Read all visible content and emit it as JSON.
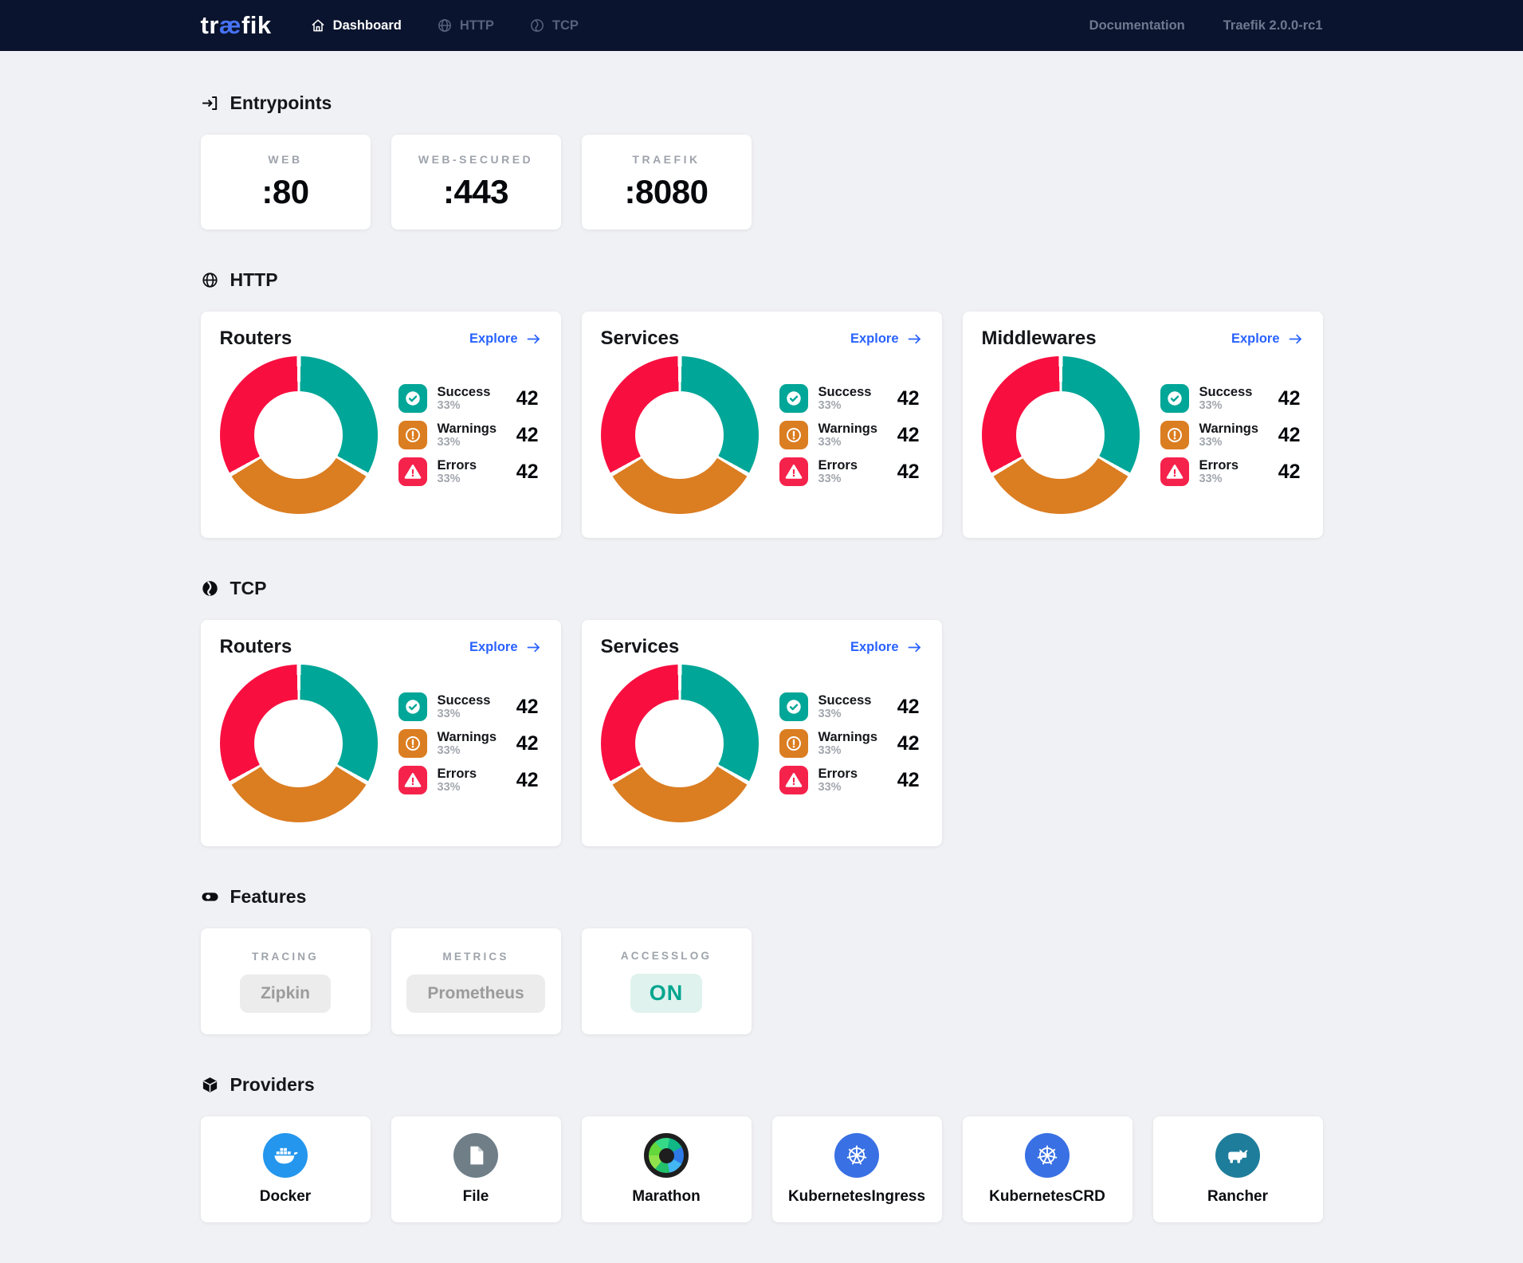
{
  "navbar": {
    "logo": {
      "pre": "tr",
      "ae": "æ",
      "post": "fik"
    },
    "items": [
      {
        "label": "Dashboard",
        "icon": "home-icon",
        "active": true
      },
      {
        "label": "HTTP",
        "icon": "globe-icon",
        "active": false
      },
      {
        "label": "TCP",
        "icon": "tcp-outline-icon",
        "active": false
      }
    ],
    "links": [
      {
        "label": "Documentation"
      },
      {
        "label": "Traefik 2.0.0-rc1"
      }
    ]
  },
  "sections": {
    "entrypoints": {
      "title": "Entrypoints",
      "icon": "login-icon",
      "cards": [
        {
          "label": "WEB",
          "value": ":80"
        },
        {
          "label": "WEB-SECURED",
          "value": ":443"
        },
        {
          "label": "TRAEFIK",
          "value": ":8080"
        }
      ]
    },
    "http": {
      "title": "HTTP",
      "icon": "globe-icon",
      "cards": [
        "Routers",
        "Services",
        "Middlewares"
      ]
    },
    "tcp": {
      "title": "TCP",
      "icon": "tcp-filled-icon",
      "cards": [
        "Routers",
        "Services"
      ]
    },
    "features": {
      "title": "Features",
      "icon": "toggle-icon",
      "cards": [
        {
          "label": "TRACING",
          "value": "Zipkin",
          "state": "muted"
        },
        {
          "label": "METRICS",
          "value": "Prometheus",
          "state": "muted"
        },
        {
          "label": "ACCESSLOG",
          "value": "ON",
          "state": "on"
        }
      ]
    },
    "providers": {
      "title": "Providers",
      "icon": "cube-icon",
      "cards": [
        {
          "label": "Docker",
          "icon": "docker-icon"
        },
        {
          "label": "File",
          "icon": "file-icon"
        },
        {
          "label": "Marathon",
          "icon": "marathon-icon"
        },
        {
          "label": "KubernetesIngress",
          "icon": "kubernetes-icon"
        },
        {
          "label": "KubernetesCRD",
          "icon": "kubernetes-icon"
        },
        {
          "label": "Rancher",
          "icon": "rancher-icon"
        }
      ]
    }
  },
  "chart_card": {
    "explore_label": "Explore",
    "legend": [
      {
        "name": "Success",
        "percent": "33%",
        "value": "42",
        "color": "#00A697",
        "donut_color": "#00A697",
        "icon": "check-circle-icon"
      },
      {
        "name": "Warnings",
        "percent": "33%",
        "value": "42",
        "color": "#DB7D21",
        "donut_color": "#DB7D21",
        "icon": "exclamation-circle-icon"
      },
      {
        "name": "Errors",
        "percent": "33%",
        "value": "42",
        "color": "#F5224B",
        "donut_color": "#F80F40",
        "icon": "triangle-alert-icon"
      }
    ]
  },
  "chart_data": [
    {
      "type": "pie",
      "section": "HTTP",
      "title": "Routers",
      "labels": [
        "Success",
        "Warnings",
        "Errors"
      ],
      "percents": [
        33,
        33,
        33
      ],
      "counts": [
        42,
        42,
        42
      ],
      "colors": [
        "#00A697",
        "#DB7D21",
        "#F80F40"
      ],
      "legend_position": "right",
      "donut_hole": 0.56
    },
    {
      "type": "pie",
      "section": "HTTP",
      "title": "Services",
      "labels": [
        "Success",
        "Warnings",
        "Errors"
      ],
      "percents": [
        33,
        33,
        33
      ],
      "counts": [
        42,
        42,
        42
      ],
      "colors": [
        "#00A697",
        "#DB7D21",
        "#F80F40"
      ],
      "legend_position": "right",
      "donut_hole": 0.56
    },
    {
      "type": "pie",
      "section": "HTTP",
      "title": "Middlewares",
      "labels": [
        "Success",
        "Warnings",
        "Errors"
      ],
      "percents": [
        33,
        33,
        33
      ],
      "counts": [
        42,
        42,
        42
      ],
      "colors": [
        "#00A697",
        "#DB7D21",
        "#F80F40"
      ],
      "legend_position": "right",
      "donut_hole": 0.56
    },
    {
      "type": "pie",
      "section": "TCP",
      "title": "Routers",
      "labels": [
        "Success",
        "Warnings",
        "Errors"
      ],
      "percents": [
        33,
        33,
        33
      ],
      "counts": [
        42,
        42,
        42
      ],
      "colors": [
        "#00A697",
        "#DB7D21",
        "#F80F40"
      ],
      "legend_position": "right",
      "donut_hole": 0.56
    },
    {
      "type": "pie",
      "section": "TCP",
      "title": "Services",
      "labels": [
        "Success",
        "Warnings",
        "Errors"
      ],
      "percents": [
        33,
        33,
        33
      ],
      "counts": [
        42,
        42,
        42
      ],
      "colors": [
        "#00A697",
        "#DB7D21",
        "#F80F40"
      ],
      "legend_position": "right",
      "donut_hole": 0.56
    }
  ],
  "colors": {
    "navbar_bg": "#0B142E",
    "page_bg": "#F0F1F4",
    "accent_blue": "#2962FF",
    "logo_blue": "#4673F5",
    "teal": "#00A697",
    "orange": "#DB7D21",
    "red_donut": "#F80F40",
    "red_badge": "#F5224B",
    "on_text": "#00A58E",
    "on_bg": "#DFF2EE",
    "docker_blue": "#2496ED",
    "file_slate": "#6F7E87",
    "kubernetes_blue": "#3970E4",
    "rancher_teal": "#1E7D9B"
  }
}
